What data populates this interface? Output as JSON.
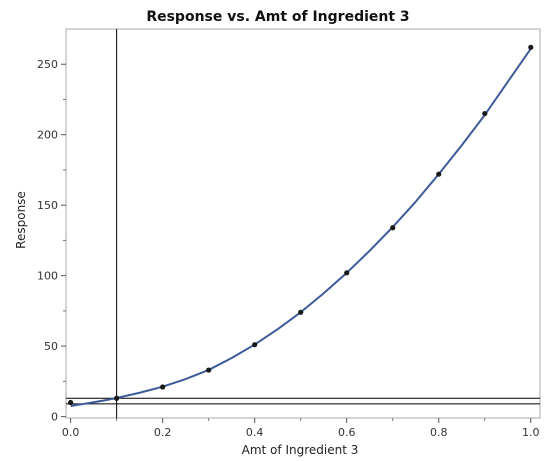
{
  "chart_data": {
    "type": "line",
    "title": "Response vs. Amt of Ingredient 3",
    "xlabel": "Amt of Ingredient 3",
    "ylabel": "Response",
    "xlim": [
      -0.01,
      1.02
    ],
    "ylim": [
      -1,
      275
    ],
    "x_ticks": [
      0.0,
      0.2,
      0.4,
      0.6,
      0.8,
      1.0
    ],
    "x_tick_labels": [
      "0.0",
      "0.2",
      "0.4",
      "0.6",
      "0.8",
      "1.0"
    ],
    "y_ticks": [
      0,
      50,
      100,
      150,
      200,
      250
    ],
    "y_tick_labels": [
      "0",
      "50",
      "100",
      "150",
      "200",
      "250"
    ],
    "grid": false,
    "series": [
      {
        "marker": "point",
        "color": "#1a1a1a",
        "x": [
          0.0,
          0.1,
          0.2,
          0.3,
          0.4,
          0.5,
          0.6,
          0.7,
          0.8,
          0.9,
          1.0
        ],
        "y": [
          10,
          13,
          21,
          33,
          51,
          74,
          102,
          134,
          172,
          215,
          262
        ]
      }
    ],
    "fit_curve": {
      "color": "#3d5a99",
      "x": [
        0.0,
        0.025,
        0.05,
        0.075,
        0.1,
        0.15,
        0.2,
        0.25,
        0.3,
        0.35,
        0.4,
        0.45,
        0.5,
        0.55,
        0.6,
        0.65,
        0.7,
        0.75,
        0.8,
        0.85,
        0.9,
        0.95,
        1.0
      ],
      "y": [
        7.5,
        8.8,
        10.2,
        11.6,
        13.2,
        16.9,
        21.2,
        26.6,
        33.1,
        41.6,
        51.1,
        62,
        74,
        87.5,
        102,
        117.7,
        134.5,
        152.5,
        172,
        192.5,
        214,
        237.5,
        261
      ]
    },
    "reference_lines": {
      "vertical_x": [
        0.1
      ],
      "horizontal_y": [
        9,
        13
      ]
    }
  }
}
